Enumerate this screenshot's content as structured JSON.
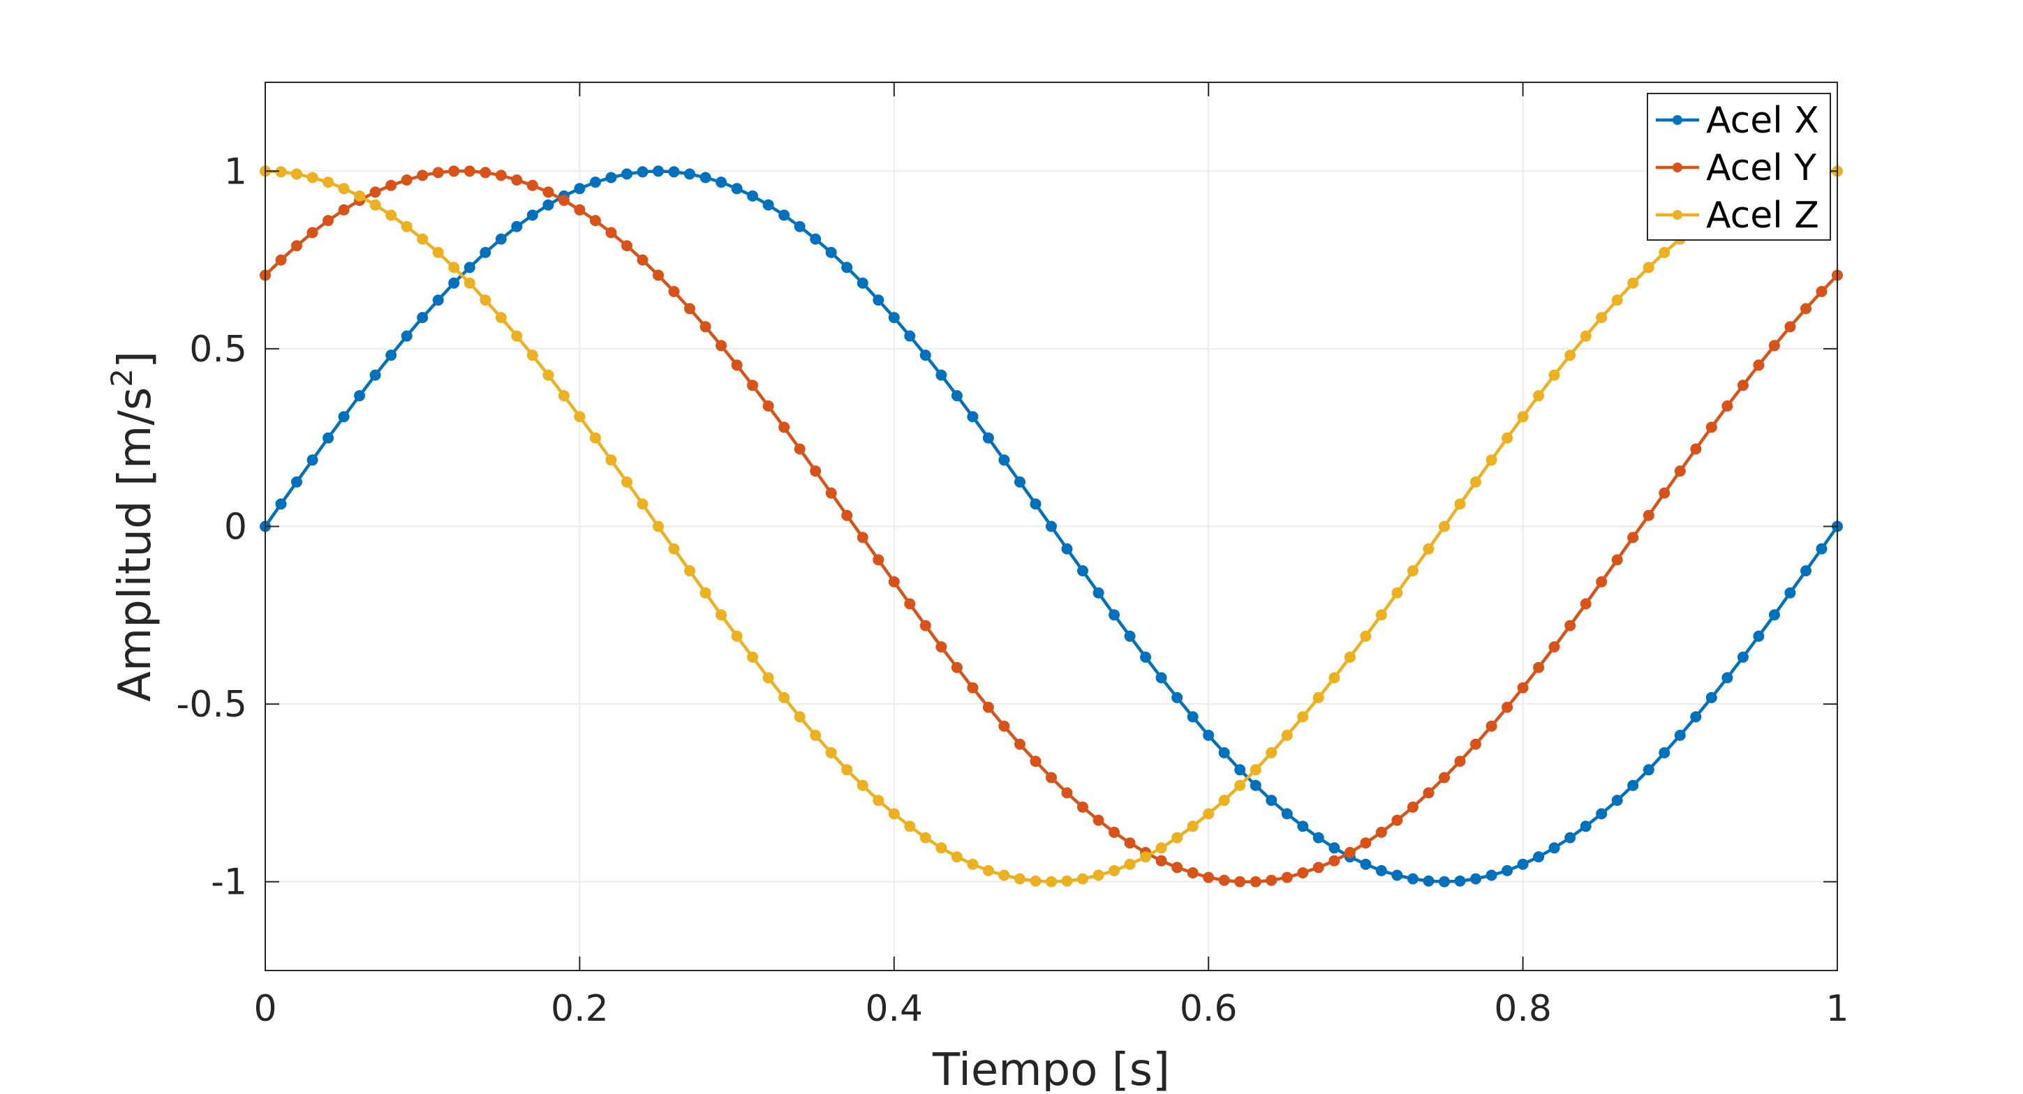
{
  "chart_data": {
    "type": "line",
    "title": "",
    "xlabel": "Tiempo [s]",
    "ylabel": "Amplitud [m/s²]",
    "ylabel_parts": {
      "base": "Amplitud [m/s",
      "superscript": "2",
      "tail": "]"
    },
    "xlim": [
      0,
      1
    ],
    "ylim": [
      -1.25,
      1.25
    ],
    "xticks": [
      0,
      0.2,
      0.4,
      0.6,
      0.8,
      1
    ],
    "xtick_labels": [
      "0",
      "0.2",
      "0.4",
      "0.6",
      "0.8",
      "1"
    ],
    "yticks": [
      -1,
      -0.5,
      0,
      0.5,
      1
    ],
    "ytick_labels": [
      "-1",
      "-0.5",
      "0",
      "0.5",
      "1"
    ],
    "grid": true,
    "legend_location": "top-right",
    "x": [
      0,
      0.01,
      0.02,
      0.03,
      0.04,
      0.05,
      0.06,
      0.07,
      0.08,
      0.09,
      0.1,
      0.11,
      0.12,
      0.13,
      0.14,
      0.15,
      0.16,
      0.17,
      0.18,
      0.19,
      0.2,
      0.21,
      0.22,
      0.23,
      0.24,
      0.25,
      0.26,
      0.27,
      0.28,
      0.29,
      0.3,
      0.31,
      0.32,
      0.33,
      0.34,
      0.35,
      0.36,
      0.37,
      0.38,
      0.39,
      0.4,
      0.41,
      0.42,
      0.43,
      0.44,
      0.45,
      0.46,
      0.47,
      0.48,
      0.49,
      0.5,
      0.51,
      0.52,
      0.53,
      0.54,
      0.55,
      0.56,
      0.57,
      0.58,
      0.59,
      0.6,
      0.61,
      0.62,
      0.63,
      0.64,
      0.65,
      0.66,
      0.67,
      0.68,
      0.69,
      0.7,
      0.71,
      0.72,
      0.73,
      0.74,
      0.75,
      0.76,
      0.77,
      0.78,
      0.79,
      0.8,
      0.81,
      0.82,
      0.83,
      0.84,
      0.85,
      0.86,
      0.87,
      0.88,
      0.89,
      0.9,
      0.91,
      0.92,
      0.93,
      0.94,
      0.95,
      0.96,
      0.97,
      0.98,
      0.99,
      1
    ],
    "series": [
      {
        "name": "Acel X",
        "color": "#0072BD",
        "values": [
          0,
          0.063,
          0.125,
          0.187,
          0.249,
          0.309,
          0.368,
          0.426,
          0.482,
          0.536,
          0.588,
          0.637,
          0.685,
          0.729,
          0.771,
          0.809,
          0.844,
          0.876,
          0.905,
          0.93,
          0.951,
          0.969,
          0.982,
          0.992,
          0.998,
          1,
          0.998,
          0.992,
          0.982,
          0.969,
          0.951,
          0.93,
          0.905,
          0.876,
          0.844,
          0.809,
          0.771,
          0.729,
          0.685,
          0.637,
          0.588,
          0.536,
          0.482,
          0.426,
          0.368,
          0.309,
          0.249,
          0.187,
          0.125,
          0.063,
          0,
          -0.063,
          -0.125,
          -0.187,
          -0.249,
          -0.309,
          -0.368,
          -0.426,
          -0.482,
          -0.536,
          -0.588,
          -0.637,
          -0.685,
          -0.729,
          -0.771,
          -0.809,
          -0.844,
          -0.876,
          -0.905,
          -0.93,
          -0.951,
          -0.969,
          -0.982,
          -0.992,
          -0.998,
          -1,
          -0.998,
          -0.992,
          -0.982,
          -0.969,
          -0.951,
          -0.93,
          -0.905,
          -0.876,
          -0.844,
          -0.809,
          -0.771,
          -0.729,
          -0.685,
          -0.637,
          -0.588,
          -0.536,
          -0.482,
          -0.426,
          -0.368,
          -0.309,
          -0.249,
          -0.187,
          -0.125,
          -0.063,
          0
        ]
      },
      {
        "name": "Acel Y",
        "color": "#D95319",
        "values": [
          0.707,
          0.75,
          0.79,
          0.827,
          0.861,
          0.891,
          0.918,
          0.941,
          0.96,
          0.975,
          0.988,
          0.996,
          1,
          1,
          0.996,
          0.988,
          0.975,
          0.96,
          0.941,
          0.918,
          0.891,
          0.861,
          0.827,
          0.79,
          0.75,
          0.707,
          0.661,
          0.613,
          0.562,
          0.509,
          0.454,
          0.397,
          0.339,
          0.279,
          0.218,
          0.156,
          0.094,
          0.031,
          -0.031,
          -0.094,
          -0.156,
          -0.218,
          -0.279,
          -0.339,
          -0.397,
          -0.454,
          -0.509,
          -0.562,
          -0.613,
          -0.661,
          -0.707,
          -0.75,
          -0.79,
          -0.827,
          -0.861,
          -0.891,
          -0.918,
          -0.941,
          -0.96,
          -0.975,
          -0.988,
          -0.996,
          -1,
          -1,
          -0.996,
          -0.988,
          -0.975,
          -0.96,
          -0.941,
          -0.918,
          -0.891,
          -0.861,
          -0.827,
          -0.79,
          -0.75,
          -0.707,
          -0.661,
          -0.613,
          -0.562,
          -0.509,
          -0.454,
          -0.397,
          -0.339,
          -0.279,
          -0.218,
          -0.156,
          -0.094,
          -0.031,
          0.031,
          0.094,
          0.156,
          0.218,
          0.279,
          0.339,
          0.397,
          0.454,
          0.509,
          0.562,
          0.613,
          0.661,
          0.707
        ]
      },
      {
        "name": "Acel Z",
        "color": "#EDB120",
        "values": [
          1,
          0.998,
          0.992,
          0.982,
          0.969,
          0.951,
          0.93,
          0.905,
          0.876,
          0.844,
          0.809,
          0.771,
          0.729,
          0.685,
          0.637,
          0.588,
          0.536,
          0.482,
          0.426,
          0.368,
          0.309,
          0.249,
          0.187,
          0.125,
          0.063,
          0,
          -0.063,
          -0.125,
          -0.187,
          -0.249,
          -0.309,
          -0.368,
          -0.426,
          -0.482,
          -0.536,
          -0.588,
          -0.637,
          -0.685,
          -0.729,
          -0.771,
          -0.809,
          -0.844,
          -0.876,
          -0.905,
          -0.93,
          -0.951,
          -0.969,
          -0.982,
          -0.992,
          -0.998,
          -1,
          -0.998,
          -0.992,
          -0.982,
          -0.969,
          -0.951,
          -0.93,
          -0.905,
          -0.876,
          -0.844,
          -0.809,
          -0.771,
          -0.729,
          -0.685,
          -0.637,
          -0.588,
          -0.536,
          -0.482,
          -0.426,
          -0.368,
          -0.309,
          -0.249,
          -0.187,
          -0.125,
          -0.063,
          0,
          0.063,
          0.125,
          0.187,
          0.249,
          0.309,
          0.368,
          0.426,
          0.482,
          0.536,
          0.588,
          0.637,
          0.685,
          0.729,
          0.771,
          0.809,
          0.844,
          0.876,
          0.905,
          0.93,
          0.951,
          0.969,
          0.982,
          0.992,
          0.998,
          1
        ]
      }
    ]
  }
}
